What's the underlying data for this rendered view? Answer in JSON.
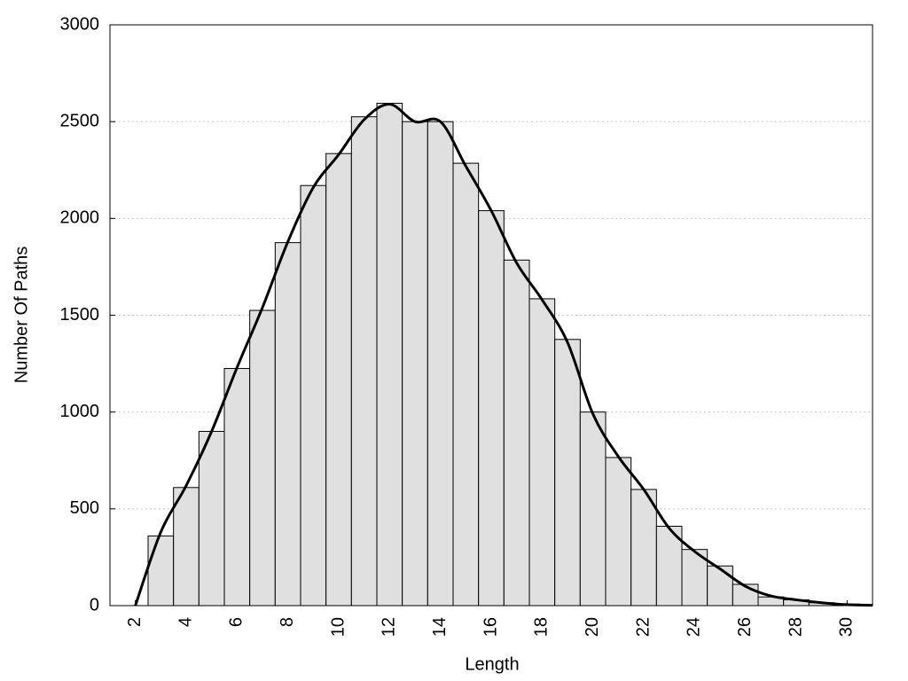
{
  "chart_data": {
    "type": "histogram",
    "xlabel": "Length",
    "ylabel": "Number Of Paths",
    "bins": [
      2.5,
      3.5,
      4.5,
      5.5,
      6.5,
      7.5,
      8.5,
      9.5,
      10.5,
      11.5,
      12.5,
      13.5,
      14.5,
      15.5,
      16.5,
      17.5,
      18.5,
      19.5,
      20.5,
      21.5,
      22.5,
      23.5,
      24.5,
      25.5,
      26.5,
      27.5,
      28.5,
      29.5,
      30.5
    ],
    "values": [
      360,
      610,
      900,
      1225,
      1525,
      1875,
      2170,
      2335,
      2525,
      2595,
      2500,
      2500,
      2285,
      2040,
      1785,
      1585,
      1375,
      1000,
      765,
      600,
      410,
      290,
      205,
      110,
      45,
      30,
      15,
      8
    ],
    "color": "#e0e0e0",
    "overlay": {
      "type": "line",
      "color": "#000000",
      "x": [
        2,
        3,
        4,
        5,
        6,
        7,
        8,
        9,
        10,
        11,
        12,
        13,
        14,
        15,
        16,
        17,
        18,
        19,
        20,
        21,
        22,
        23,
        24,
        25,
        26,
        27,
        28,
        29,
        30,
        31
      ],
      "values": [
        0,
        380,
        620,
        900,
        1230,
        1540,
        1880,
        2160,
        2330,
        2510,
        2590,
        2500,
        2500,
        2270,
        2040,
        1770,
        1580,
        1360,
        990,
        770,
        600,
        400,
        280,
        190,
        100,
        50,
        30,
        15,
        5,
        2
      ]
    },
    "xlim": [
      1,
      31
    ],
    "xticks": [
      2,
      4,
      6,
      8,
      10,
      12,
      14,
      16,
      18,
      20,
      22,
      24,
      26,
      28,
      30
    ],
    "ylim": [
      0,
      3000
    ],
    "yticks": [
      0,
      500,
      1000,
      1500,
      2000,
      2500,
      3000
    ],
    "grid": true
  }
}
